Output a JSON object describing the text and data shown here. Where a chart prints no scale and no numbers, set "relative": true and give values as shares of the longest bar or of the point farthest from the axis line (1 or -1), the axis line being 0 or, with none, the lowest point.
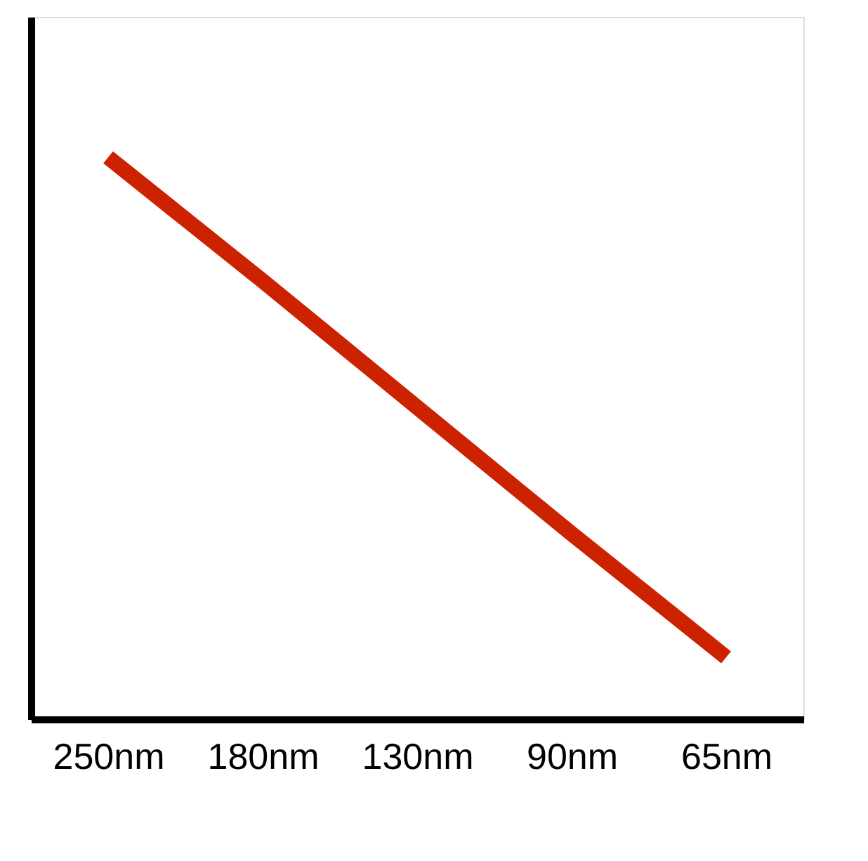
{
  "chart_data": {
    "type": "line",
    "relative": true,
    "tick_labels": "x",
    "grid": false,
    "marker": "none",
    "line_style": "solid",
    "categories": [
      "250nm",
      "180nm",
      "130nm",
      "90nm",
      "65nm"
    ],
    "series": [
      {
        "color": "#cc2200",
        "values": [
          1,
          0.78,
          0.555,
          0.33,
          0.11
        ]
      }
    ]
  }
}
